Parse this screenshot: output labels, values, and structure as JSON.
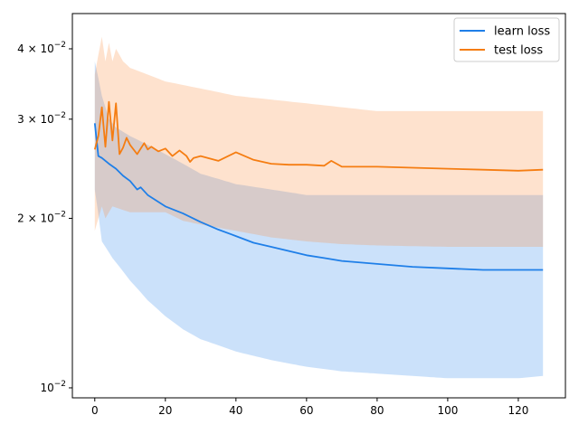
{
  "chart_data": {
    "type": "line",
    "xlim": [
      -6.35,
      133.35
    ],
    "ylim": [
      0.0096,
      0.0462
    ],
    "yscale": "log",
    "x_ticks": [
      0,
      20,
      40,
      60,
      80,
      100,
      120
    ],
    "x_tick_labels": [
      "0",
      "20",
      "40",
      "60",
      "80",
      "100",
      "120"
    ],
    "y_ticks": [
      {
        "value": 0.01,
        "base": "10",
        "exp": "−2",
        "mult": ""
      },
      {
        "value": 0.02,
        "base": "10",
        "exp": "−2",
        "mult": "2 × "
      },
      {
        "value": 0.03,
        "base": "10",
        "exp": "−2",
        "mult": "3 × "
      },
      {
        "value": 0.04,
        "base": "10",
        "exp": "−2",
        "mult": "4 × "
      }
    ],
    "grid": false,
    "legend": {
      "placement": "top-right"
    },
    "series": [
      {
        "name": "learn loss",
        "color": "#1f7fe8",
        "band_color": "#1f7fe8",
        "mean": {
          "x": [
            0,
            1,
            2,
            4,
            6,
            8,
            10,
            12,
            13,
            15,
            20,
            25,
            30,
            35,
            40,
            45,
            50,
            55,
            60,
            65,
            70,
            80,
            90,
            100,
            110,
            120,
            127
          ],
          "y": [
            0.0295,
            0.0258,
            0.0256,
            0.025,
            0.0245,
            0.0238,
            0.0233,
            0.0225,
            0.0227,
            0.022,
            0.021,
            0.0204,
            0.0197,
            0.0191,
            0.0186,
            0.0181,
            0.0178,
            0.0175,
            0.0172,
            0.017,
            0.0168,
            0.0166,
            0.0164,
            0.0163,
            0.0162,
            0.0162,
            0.0162
          ]
        },
        "upper": {
          "x": [
            0,
            2,
            4,
            6,
            10,
            20,
            30,
            40,
            60,
            80,
            100,
            127
          ],
          "y": [
            0.038,
            0.033,
            0.03,
            0.029,
            0.028,
            0.026,
            0.024,
            0.023,
            0.022,
            0.022,
            0.022,
            0.022
          ]
        },
        "lower": {
          "x": [
            0,
            2,
            5,
            10,
            15,
            20,
            25,
            30,
            40,
            50,
            60,
            70,
            80,
            90,
            100,
            110,
            120,
            127
          ],
          "y": [
            0.0225,
            0.0182,
            0.017,
            0.0155,
            0.0143,
            0.0134,
            0.0127,
            0.0122,
            0.0116,
            0.0112,
            0.0109,
            0.0107,
            0.0106,
            0.0105,
            0.0104,
            0.0104,
            0.0104,
            0.0105
          ]
        }
      },
      {
        "name": "test loss",
        "color": "#f57d12",
        "band_color": "#fd8d3c",
        "mean": {
          "x": [
            0,
            1,
            2,
            3,
            4,
            5,
            6,
            7,
            8,
            9,
            10,
            12,
            14,
            15,
            16,
            18,
            20,
            22,
            24,
            26,
            27,
            28,
            30,
            35,
            40,
            45,
            50,
            55,
            60,
            65,
            67,
            70,
            80,
            90,
            100,
            110,
            120,
            127
          ],
          "y": [
            0.0265,
            0.028,
            0.0315,
            0.0268,
            0.0322,
            0.0275,
            0.032,
            0.026,
            0.0267,
            0.0278,
            0.027,
            0.026,
            0.0272,
            0.0265,
            0.0268,
            0.0263,
            0.0266,
            0.0258,
            0.0264,
            0.0258,
            0.0252,
            0.0256,
            0.0258,
            0.0253,
            0.0262,
            0.0254,
            0.025,
            0.0249,
            0.0249,
            0.0248,
            0.0253,
            0.0247,
            0.0247,
            0.0246,
            0.0245,
            0.0244,
            0.0243,
            0.0244
          ]
        },
        "upper": {
          "x": [
            0,
            1,
            2,
            3,
            4,
            5,
            6,
            8,
            10,
            15,
            20,
            30,
            40,
            60,
            80,
            100,
            120,
            127
          ],
          "y": [
            0.036,
            0.039,
            0.042,
            0.038,
            0.041,
            0.038,
            0.04,
            0.038,
            0.037,
            0.036,
            0.035,
            0.034,
            0.033,
            0.032,
            0.031,
            0.031,
            0.031,
            0.031
          ]
        },
        "lower": {
          "x": [
            0,
            1,
            2,
            3,
            5,
            10,
            15,
            20,
            25,
            30,
            40,
            50,
            60,
            70,
            80,
            100,
            120,
            127
          ],
          "y": [
            0.019,
            0.02,
            0.021,
            0.02,
            0.021,
            0.0205,
            0.0205,
            0.0205,
            0.0198,
            0.0195,
            0.019,
            0.0185,
            0.0182,
            0.018,
            0.0179,
            0.0178,
            0.0178,
            0.0178
          ]
        }
      }
    ]
  }
}
